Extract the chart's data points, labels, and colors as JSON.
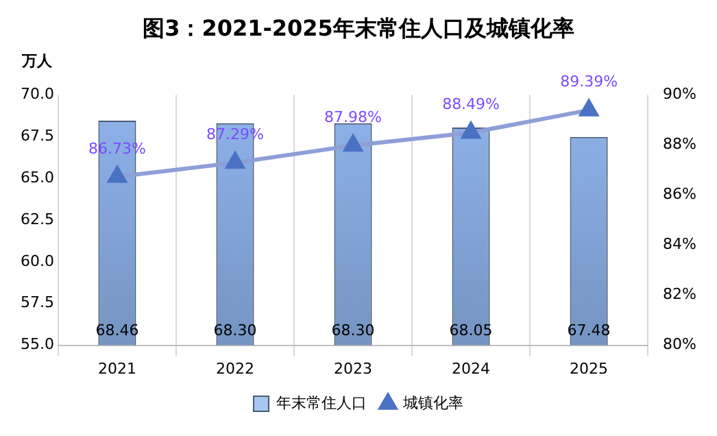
{
  "chart_data": {
    "type": "bar",
    "title": "图3：2021-2025年末常住人口及城镇化率",
    "ylabel": "万人",
    "categories": [
      "2021",
      "2022",
      "2023",
      "2024",
      "2025"
    ],
    "series": [
      {
        "name": "年末常住人口",
        "color": "#8fb4ec",
        "values": [
          68.46,
          68.3,
          68.3,
          68.05,
          67.48
        ],
        "value_labels": [
          "68.46",
          "68.30",
          "68.30",
          "68.05",
          "67.48"
        ]
      },
      {
        "name": "城镇化率",
        "type": "line",
        "axis": "y2",
        "color": "#8e9fd8",
        "marker": "triangle",
        "values": [
          86.73,
          87.29,
          87.98,
          88.49,
          89.39
        ],
        "value_labels": [
          "86.73%",
          "87.29%",
          "87.98%",
          "88.49%",
          "89.39%"
        ]
      }
    ],
    "ylim": [
      55,
      70
    ],
    "yticks": [
      {
        "value": 55,
        "label": "55.0"
      },
      {
        "value": 57.5,
        "label": "57.5"
      },
      {
        "value": 60,
        "label": "60.0"
      },
      {
        "value": 62.5,
        "label": "62.5"
      },
      {
        "value": 65,
        "label": "65.0"
      },
      {
        "value": 67.5,
        "label": "67.5"
      },
      {
        "value": 70,
        "label": "70.0"
      }
    ],
    "y2lim": [
      80,
      90
    ],
    "y2ticks": [
      {
        "value": 80,
        "label": "80%"
      },
      {
        "value": 82,
        "label": "82%"
      },
      {
        "value": 84,
        "label": "84%"
      },
      {
        "value": 86,
        "label": "86%"
      },
      {
        "value": 88,
        "label": "88%"
      },
      {
        "value": 90,
        "label": "90%"
      }
    ],
    "grid": "x",
    "legend": "bottom"
  }
}
